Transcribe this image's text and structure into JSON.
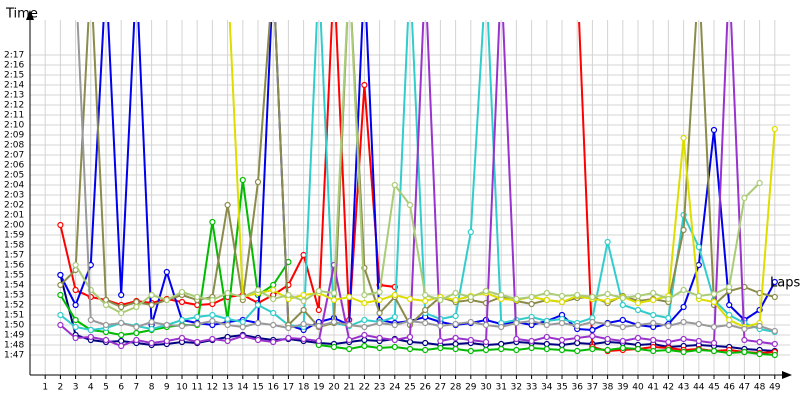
{
  "chart_data": {
    "type": "line",
    "y_label": "Time",
    "x_label": "Laps",
    "xlim": [
      0,
      50
    ],
    "ylim": [
      105,
      140
    ],
    "grid": true,
    "xticks": [
      1,
      2,
      3,
      4,
      5,
      6,
      7,
      8,
      9,
      10,
      11,
      12,
      13,
      14,
      15,
      16,
      17,
      18,
      19,
      20,
      21,
      22,
      23,
      24,
      25,
      26,
      27,
      28,
      29,
      30,
      31,
      32,
      33,
      34,
      35,
      36,
      37,
      38,
      39,
      40,
      41,
      42,
      43,
      44,
      45,
      46,
      47,
      48,
      49
    ],
    "yticks": [
      {
        "value": 107,
        "label": "1:47"
      },
      {
        "value": 108,
        "label": "1:48"
      },
      {
        "value": 109,
        "label": "1:49"
      },
      {
        "value": 110,
        "label": "1:50"
      },
      {
        "value": 111,
        "label": "1:51"
      },
      {
        "value": 112,
        "label": "1:52"
      },
      {
        "value": 113,
        "label": "1:53"
      },
      {
        "value": 114,
        "label": "1:54"
      },
      {
        "value": 115,
        "label": "1:55"
      },
      {
        "value": 116,
        "label": "1:56"
      },
      {
        "value": 117,
        "label": "1:57"
      },
      {
        "value": 118,
        "label": "1:58"
      },
      {
        "value": 119,
        "label": "1:59"
      },
      {
        "value": 120,
        "label": "2:00"
      },
      {
        "value": 121,
        "label": "2:01"
      },
      {
        "value": 122,
        "label": "2:02"
      },
      {
        "value": 123,
        "label": "2:03"
      },
      {
        "value": 124,
        "label": "2:04"
      },
      {
        "value": 125,
        "label": "2:05"
      },
      {
        "value": 126,
        "label": "2:06"
      },
      {
        "value": 127,
        "label": "2:07"
      },
      {
        "value": 128,
        "label": "2:08"
      },
      {
        "value": 129,
        "label": "2:09"
      },
      {
        "value": 130,
        "label": "2:10"
      },
      {
        "value": 131,
        "label": "2:11"
      },
      {
        "value": 132,
        "label": "2:12"
      },
      {
        "value": 133,
        "label": "2:13"
      },
      {
        "value": 134,
        "label": "2:14"
      },
      {
        "value": 135,
        "label": "2:15"
      },
      {
        "value": 136,
        "label": "2:16"
      },
      {
        "value": 137,
        "label": "2:17"
      }
    ],
    "x": [
      2,
      3,
      4,
      5,
      6,
      7,
      8,
      9,
      10,
      11,
      12,
      13,
      14,
      15,
      16,
      17,
      18,
      19,
      20,
      21,
      22,
      23,
      24,
      25,
      26,
      27,
      28,
      29,
      30,
      31,
      32,
      33,
      34,
      35,
      36,
      37,
      38,
      39,
      40,
      41,
      42,
      43,
      44,
      45,
      46,
      47,
      48,
      49
    ],
    "series": [
      {
        "color": "#000080",
        "values": [
          115,
          109,
          108.5,
          108.3,
          108.4,
          108.2,
          108,
          108.1,
          108.3,
          108.2,
          108.5,
          108.8,
          109,
          108.7,
          108.5,
          108.6,
          108.4,
          108.2,
          108.1,
          108.3,
          108.5,
          108.4,
          108.6,
          108.3,
          108.2,
          108,
          108.1,
          108.2,
          108,
          108.1,
          108.3,
          108.2,
          108.1,
          108,
          108.2,
          108.1,
          108.3,
          108.2,
          108,
          108.1,
          107.8,
          107.9,
          108,
          107.9,
          107.8,
          107.6,
          107.5,
          107.4
        ]
      },
      {
        "color": "#ff0000",
        "values": [
          120,
          113.5,
          112.8,
          112.5,
          112,
          112.4,
          112.2,
          112.6,
          112.3,
          112,
          112.1,
          112.8,
          113,
          112.2,
          113,
          114,
          117,
          111.5,
          145,
          110.5,
          134,
          114,
          113.8,
          null,
          null,
          null,
          null,
          null,
          null,
          null,
          null,
          null,
          null,
          null,
          145,
          107.8,
          107.4,
          107.5,
          107.6,
          107.8,
          107.7,
          107.5,
          107.6,
          107.4,
          107.5,
          107.3,
          107.2,
          107.3
        ]
      },
      {
        "color": "#00bb00",
        "values": [
          113,
          110.5,
          109.5,
          109.3,
          109,
          109.2,
          109.5,
          109.8,
          110,
          110,
          120.3,
          110.5,
          124.5,
          113,
          114,
          116.3,
          null,
          108,
          107.8,
          107.6,
          107.9,
          107.7,
          107.8,
          107.6,
          107.5,
          107.7,
          107.6,
          107.4,
          107.5,
          107.6,
          107.5,
          107.7,
          107.6,
          107.5,
          107.4,
          107.6,
          107.5,
          107.7,
          107.6,
          107.4,
          107.5,
          107.3,
          107.5,
          107.4,
          107.2,
          107.3,
          107.1,
          107
        ]
      },
      {
        "color": "#0000ee",
        "values": [
          115,
          112,
          116,
          145,
          113,
          145,
          110,
          115.3,
          110.5,
          110.2,
          110,
          110.3,
          110.5,
          110.2,
          145,
          110,
          109.5,
          110.3,
          110.7,
          110,
          145,
          110.5,
          110.2,
          110.4,
          110.8,
          110.3,
          110,
          110.2,
          110.5,
          110.1,
          110.3,
          110,
          110.4,
          111,
          109.6,
          109.5,
          110.2,
          110.5,
          110,
          109.8,
          110.1,
          111.8,
          116,
          129.5,
          112,
          110.5,
          111.5,
          114.3
        ]
      },
      {
        "color": "#33cccc",
        "values": [
          111,
          109.8,
          109.5,
          109.7,
          110.2,
          109.9,
          109.6,
          110,
          110.5,
          110.8,
          111,
          110.6,
          110.3,
          112,
          111.2,
          110,
          109.8,
          145,
          110.2,
          109.9,
          110.5,
          110.3,
          110.8,
          145,
          111.2,
          110.6,
          110.9,
          119.3,
          145,
          110.2,
          110.5,
          110.8,
          110.4,
          110.6,
          110.2,
          110.7,
          118.3,
          112,
          111.5,
          111,
          110.7,
          121,
          117.8,
          112.5,
          111,
          110.2,
          109.6,
          109.3
        ]
      },
      {
        "color": "#8b8b4b",
        "values": [
          114,
          115.5,
          145,
          112.5,
          111.8,
          112.3,
          112,
          112.5,
          113,
          112.5,
          112.8,
          122,
          112.5,
          124.3,
          145,
          110,
          111.5,
          109.8,
          110.2,
          145,
          115.7,
          111.2,
          112.8,
          110,
          111.5,
          112.8,
          112.3,
          112.5,
          112.2,
          112.8,
          112.4,
          112.1,
          112.5,
          112.3,
          112.7,
          112.8,
          112.2,
          112.9,
          112.4,
          112.6,
          112.3,
          119.5,
          145,
          112,
          113.4,
          113.8,
          113.2,
          112.8
        ]
      },
      {
        "color": "#9933cc",
        "values": [
          110,
          108.7,
          108.8,
          108.5,
          107.9,
          108.5,
          108.2,
          108.4,
          108.7,
          108.3,
          108.6,
          108.4,
          108.9,
          108.5,
          108.3,
          108.7,
          108.6,
          108.4,
          116,
          108.5,
          109,
          108.7,
          108.5,
          108.8,
          145,
          108.4,
          108.7,
          108.5,
          108.3,
          145,
          108.6,
          108.4,
          108.8,
          108.5,
          108.7,
          108.9,
          108.6,
          108.4,
          108.7,
          108.5,
          108.3,
          108.6,
          108.4,
          108.2,
          145,
          108.5,
          108.3,
          108.1
        ]
      },
      {
        "color": "#dddd00",
        "values": [
          null,
          null,
          null,
          null,
          null,
          null,
          null,
          null,
          null,
          null,
          null,
          145,
          112.8,
          113.2,
          113.5,
          112.6,
          113,
          113.2,
          112.5,
          112.8,
          112.2,
          112.5,
          113,
          112.6,
          112.4,
          112.8,
          112.5,
          112.9,
          113.2,
          112.6,
          112.5,
          112.8,
          112.5,
          112.3,
          112.9,
          112.6,
          112.4,
          112.8,
          112.2,
          112.5,
          112.9,
          128.7,
          112.6,
          112.3,
          110.5,
          109.8,
          110.2,
          129.6
        ]
      },
      {
        "color": "#aacc77",
        "values": [
          null,
          116,
          113.5,
          112,
          111.2,
          111.8,
          113,
          112.5,
          113.3,
          112.8,
          112.5,
          113.2,
          112.8,
          113.5,
          112.6,
          113,
          112.4,
          113.4,
          113.2,
          145,
          113,
          113.3,
          124,
          122,
          113,
          112.5,
          113.2,
          112.8,
          113.4,
          113,
          112.6,
          112.8,
          113.2,
          112.9,
          113,
          112.8,
          113.1,
          112.7,
          112.9,
          113.2,
          112.6,
          113.5,
          112.9,
          113.1,
          113.8,
          122.7,
          124.2,
          null
        ]
      },
      {
        "color": "#999999",
        "values": [
          null,
          145,
          110.5,
          110,
          110.2,
          109.8,
          110.3,
          110,
          109.9,
          110.1,
          110.4,
          110,
          109.8,
          110.2,
          110,
          109.7,
          110.1,
          109.9,
          110.3,
          110,
          109.8,
          110.2,
          110,
          110.4,
          110.2,
          109.9,
          110.1,
          110.3,
          110,
          109.8,
          110.2,
          110.4,
          110,
          110.2,
          109.9,
          110.3,
          110.1,
          109.8,
          110,
          110.2,
          109.9,
          110.3,
          110.1,
          109.8,
          110,
          109.6,
          109.9,
          109.4
        ]
      }
    ]
  }
}
